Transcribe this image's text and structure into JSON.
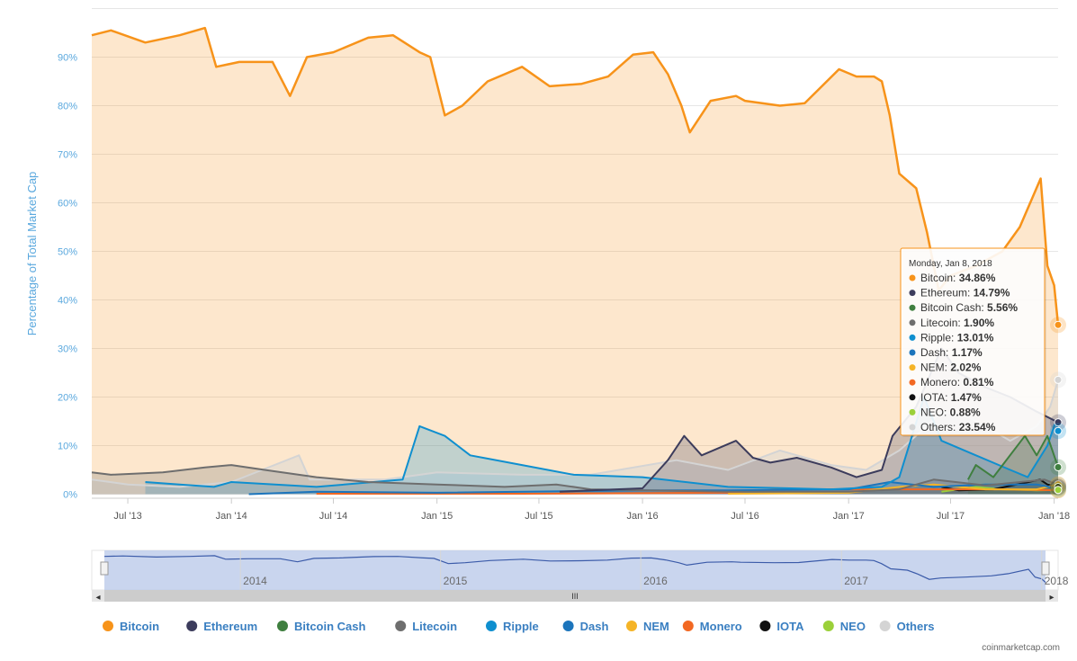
{
  "chart_data": {
    "type": "area",
    "title": "",
    "ylabel": "Percentage of Total Market Cap",
    "ylim": [
      0,
      100
    ],
    "y_tick_labels": [
      "0%",
      "10%",
      "20%",
      "30%",
      "40%",
      "50%",
      "60%",
      "70%",
      "80%",
      "90%"
    ],
    "x_tick_labels": [
      "Jul '13",
      "Jan '14",
      "Jul '14",
      "Jan '15",
      "Jul '15",
      "Jan '16",
      "Jul '16",
      "Jan '17",
      "Jul '17",
      "Jan '18"
    ],
    "x_tick_dates": [
      "2013-07-01",
      "2014-01-01",
      "2014-07-01",
      "2015-01-01",
      "2015-07-01",
      "2016-01-01",
      "2016-07-01",
      "2017-01-01",
      "2017-07-01",
      "2018-01-01"
    ],
    "x_range": [
      "2013-04-28",
      "2018-01-08"
    ],
    "grid": true,
    "legend_position": "bottom",
    "navigator_labels": [
      "2014",
      "2015",
      "2016",
      "2017",
      "2018"
    ],
    "series": [
      {
        "name": "Bitcoin",
        "color": "#f7931a",
        "points": [
          [
            "2013-04-28",
            94.5
          ],
          [
            "2013-06-01",
            95.5
          ],
          [
            "2013-08-01",
            93.0
          ],
          [
            "2013-10-01",
            94.5
          ],
          [
            "2013-11-15",
            96.0
          ],
          [
            "2013-12-05",
            88.0
          ],
          [
            "2014-01-15",
            89.0
          ],
          [
            "2014-03-15",
            89.0
          ],
          [
            "2014-04-15",
            82.0
          ],
          [
            "2014-05-15",
            90.0
          ],
          [
            "2014-07-01",
            91.0
          ],
          [
            "2014-09-01",
            94.0
          ],
          [
            "2014-10-15",
            94.5
          ],
          [
            "2014-12-01",
            91.0
          ],
          [
            "2014-12-20",
            90.0
          ],
          [
            "2015-01-15",
            78.0
          ],
          [
            "2015-02-15",
            80.0
          ],
          [
            "2015-04-01",
            85.0
          ],
          [
            "2015-06-01",
            88.0
          ],
          [
            "2015-07-20",
            84.0
          ],
          [
            "2015-09-15",
            84.5
          ],
          [
            "2015-11-01",
            86.0
          ],
          [
            "2015-12-15",
            90.5
          ],
          [
            "2016-01-20",
            91.0
          ],
          [
            "2016-02-15",
            86.5
          ],
          [
            "2016-03-10",
            80.0
          ],
          [
            "2016-03-25",
            74.5
          ],
          [
            "2016-05-01",
            81.0
          ],
          [
            "2016-06-15",
            82.0
          ],
          [
            "2016-07-01",
            81.0
          ],
          [
            "2016-09-01",
            80.0
          ],
          [
            "2016-10-15",
            80.5
          ],
          [
            "2016-12-15",
            87.5
          ],
          [
            "2017-01-15",
            86.0
          ],
          [
            "2017-02-15",
            86.0
          ],
          [
            "2017-03-01",
            85.0
          ],
          [
            "2017-03-15",
            78.0
          ],
          [
            "2017-04-01",
            66.0
          ],
          [
            "2017-05-01",
            63.0
          ],
          [
            "2017-05-20",
            54.0
          ],
          [
            "2017-06-10",
            42.0
          ],
          [
            "2017-07-01",
            45.0
          ],
          [
            "2017-08-15",
            47.0
          ],
          [
            "2017-10-01",
            50.0
          ],
          [
            "2017-11-01",
            55.0
          ],
          [
            "2017-12-08",
            65.0
          ],
          [
            "2017-12-20",
            47.0
          ],
          [
            "2018-01-01",
            43.0
          ],
          [
            "2018-01-08",
            34.86
          ]
        ]
      },
      {
        "name": "Ethereum",
        "color": "#3c3c5c",
        "points": [
          [
            "2015-08-07",
            0.5
          ],
          [
            "2015-10-01",
            0.8
          ],
          [
            "2016-01-01",
            1.2
          ],
          [
            "2016-02-15",
            7.0
          ],
          [
            "2016-03-15",
            12.0
          ],
          [
            "2016-04-15",
            8.0
          ],
          [
            "2016-06-15",
            11.0
          ],
          [
            "2016-07-15",
            7.5
          ],
          [
            "2016-08-15",
            6.5
          ],
          [
            "2016-10-01",
            7.5
          ],
          [
            "2016-12-01",
            5.5
          ],
          [
            "2017-01-15",
            3.5
          ],
          [
            "2017-03-01",
            5.0
          ],
          [
            "2017-03-20",
            12.0
          ],
          [
            "2017-05-01",
            18.0
          ],
          [
            "2017-06-15",
            30.0
          ],
          [
            "2017-07-15",
            25.0
          ],
          [
            "2017-09-01",
            22.0
          ],
          [
            "2017-10-15",
            20.0
          ],
          [
            "2017-12-01",
            17.0
          ],
          [
            "2018-01-08",
            14.79
          ]
        ]
      },
      {
        "name": "Bitcoin Cash",
        "color": "#3f7f3f",
        "points": [
          [
            "2017-08-01",
            3.0
          ],
          [
            "2017-08-15",
            6.0
          ],
          [
            "2017-09-15",
            3.5
          ],
          [
            "2017-11-10",
            12.0
          ],
          [
            "2017-12-01",
            8.0
          ],
          [
            "2017-12-20",
            12.0
          ],
          [
            "2018-01-08",
            5.56
          ]
        ]
      },
      {
        "name": "Litecoin",
        "color": "#6e6e6e",
        "points": [
          [
            "2013-04-28",
            4.5
          ],
          [
            "2013-06-01",
            4.0
          ],
          [
            "2013-09-01",
            4.5
          ],
          [
            "2013-11-15",
            5.5
          ],
          [
            "2014-01-01",
            6.0
          ],
          [
            "2014-03-01",
            5.0
          ],
          [
            "2014-06-01",
            3.5
          ],
          [
            "2014-09-01",
            2.5
          ],
          [
            "2015-01-01",
            2.0
          ],
          [
            "2015-05-01",
            1.5
          ],
          [
            "2015-08-01",
            2.0
          ],
          [
            "2015-10-01",
            1.0
          ],
          [
            "2016-06-01",
            0.5
          ],
          [
            "2017-01-01",
            0.5
          ],
          [
            "2017-04-01",
            1.0
          ],
          [
            "2017-06-01",
            3.0
          ],
          [
            "2017-09-01",
            1.8
          ],
          [
            "2017-12-15",
            3.0
          ],
          [
            "2018-01-08",
            1.9
          ]
        ]
      },
      {
        "name": "Ripple",
        "color": "#0f8fcf",
        "points": [
          [
            "2013-08-01",
            2.5
          ],
          [
            "2013-10-01",
            2.0
          ],
          [
            "2013-12-01",
            1.5
          ],
          [
            "2014-01-01",
            2.5
          ],
          [
            "2014-06-01",
            1.5
          ],
          [
            "2014-11-01",
            3.0
          ],
          [
            "2014-12-01",
            14.0
          ],
          [
            "2015-01-15",
            12.0
          ],
          [
            "2015-03-01",
            8.0
          ],
          [
            "2015-06-01",
            6.0
          ],
          [
            "2015-09-01",
            4.0
          ],
          [
            "2016-01-01",
            3.5
          ],
          [
            "2016-06-01",
            1.5
          ],
          [
            "2016-12-01",
            1.0
          ],
          [
            "2017-03-01",
            1.5
          ],
          [
            "2017-04-01",
            3.5
          ],
          [
            "2017-05-15",
            20.0
          ],
          [
            "2017-06-15",
            11.0
          ],
          [
            "2017-08-15",
            8.0
          ],
          [
            "2017-10-15",
            5.0
          ],
          [
            "2017-11-15",
            3.5
          ],
          [
            "2017-12-20",
            10.0
          ],
          [
            "2018-01-04",
            15.0
          ],
          [
            "2018-01-08",
            13.01
          ]
        ]
      },
      {
        "name": "Dash",
        "color": "#1c75bc",
        "points": [
          [
            "2014-02-01",
            0.0
          ],
          [
            "2014-06-01",
            0.5
          ],
          [
            "2015-01-01",
            0.3
          ],
          [
            "2016-01-01",
            0.8
          ],
          [
            "2016-06-01",
            0.8
          ],
          [
            "2017-01-01",
            1.0
          ],
          [
            "2017-03-15",
            2.5
          ],
          [
            "2017-06-01",
            1.5
          ],
          [
            "2017-09-01",
            2.0
          ],
          [
            "2017-12-01",
            2.0
          ],
          [
            "2018-01-08",
            1.17
          ]
        ]
      },
      {
        "name": "NEM",
        "color": "#f5b427",
        "points": [
          [
            "2016-06-01",
            0.1
          ],
          [
            "2017-01-01",
            0.3
          ],
          [
            "2017-04-01",
            1.5
          ],
          [
            "2017-06-01",
            2.0
          ],
          [
            "2017-09-01",
            1.0
          ],
          [
            "2017-12-01",
            1.0
          ],
          [
            "2018-01-08",
            2.02
          ]
        ]
      },
      {
        "name": "Monero",
        "color": "#f26822",
        "points": [
          [
            "2014-06-01",
            0.1
          ],
          [
            "2015-06-01",
            0.1
          ],
          [
            "2016-06-01",
            0.3
          ],
          [
            "2016-09-01",
            1.0
          ],
          [
            "2017-01-01",
            1.0
          ],
          [
            "2017-06-01",
            1.0
          ],
          [
            "2017-10-01",
            1.0
          ],
          [
            "2018-01-08",
            0.81
          ]
        ]
      },
      {
        "name": "IOTA",
        "color": "#111111",
        "points": [
          [
            "2017-06-15",
            1.5
          ],
          [
            "2017-07-15",
            0.8
          ],
          [
            "2017-09-15",
            1.0
          ],
          [
            "2017-12-07",
            3.0
          ],
          [
            "2017-12-20",
            2.0
          ],
          [
            "2018-01-08",
            1.47
          ]
        ]
      },
      {
        "name": "NEO",
        "color": "#9bd039",
        "points": [
          [
            "2017-06-15",
            0.5
          ],
          [
            "2017-08-15",
            1.5
          ],
          [
            "2017-10-01",
            1.0
          ],
          [
            "2017-12-01",
            0.8
          ],
          [
            "2018-01-08",
            0.88
          ]
        ]
      },
      {
        "name": "Others",
        "color": "#d4d4d4",
        "points": [
          [
            "2013-04-28",
            3.0
          ],
          [
            "2013-07-01",
            2.0
          ],
          [
            "2013-10-01",
            1.5
          ],
          [
            "2014-01-01",
            2.5
          ],
          [
            "2014-05-01",
            8.0
          ],
          [
            "2014-05-20",
            3.0
          ],
          [
            "2014-10-01",
            3.0
          ],
          [
            "2015-01-01",
            4.5
          ],
          [
            "2015-06-01",
            4.0
          ],
          [
            "2015-10-01",
            4.0
          ],
          [
            "2016-03-01",
            7.0
          ],
          [
            "2016-06-01",
            5.0
          ],
          [
            "2016-09-01",
            9.0
          ],
          [
            "2016-12-01",
            6.0
          ],
          [
            "2017-02-01",
            5.0
          ],
          [
            "2017-04-01",
            9.0
          ],
          [
            "2017-05-20",
            14.0
          ],
          [
            "2017-06-15",
            17.0
          ],
          [
            "2017-08-01",
            16.0
          ],
          [
            "2017-10-15",
            11.0
          ],
          [
            "2017-12-01",
            14.0
          ],
          [
            "2017-12-25",
            18.0
          ],
          [
            "2018-01-08",
            23.54
          ]
        ]
      }
    ],
    "tooltip": {
      "date": "Monday, Jan 8, 2018",
      "rows": [
        {
          "name": "Bitcoin",
          "value": "34.86%",
          "color": "#f7931a"
        },
        {
          "name": "Ethereum",
          "value": "14.79%",
          "color": "#3c3c5c"
        },
        {
          "name": "Bitcoin Cash",
          "value": "5.56%",
          "color": "#3f7f3f"
        },
        {
          "name": "Litecoin",
          "value": "1.90%",
          "color": "#6e6e6e"
        },
        {
          "name": "Ripple",
          "value": "13.01%",
          "color": "#0f8fcf"
        },
        {
          "name": "Dash",
          "value": "1.17%",
          "color": "#1c75bc"
        },
        {
          "name": "NEM",
          "value": "2.02%",
          "color": "#f5b427"
        },
        {
          "name": "Monero",
          "value": "0.81%",
          "color": "#f26822"
        },
        {
          "name": "IOTA",
          "value": "1.47%",
          "color": "#111111"
        },
        {
          "name": "NEO",
          "value": "0.88%",
          "color": "#9bd039"
        },
        {
          "name": "Others",
          "value": "23.54%",
          "color": "#d4d4d4"
        }
      ]
    }
  },
  "credit": "coinmarketcap.com",
  "navigator_grip_icon": "III",
  "scroll_left_icon": "◂",
  "scroll_right_icon": "▸"
}
